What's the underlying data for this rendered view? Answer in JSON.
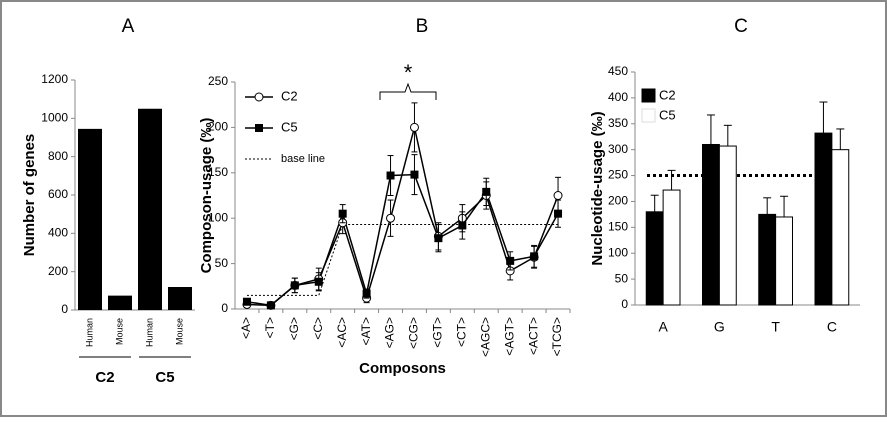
{
  "chart_data": [
    {
      "type": "bar",
      "title": "A",
      "y_label": "Number of genes",
      "categories": [
        "Human",
        "Mouse",
        "Human",
        "Mouse"
      ],
      "groups": [
        "C2",
        "C5"
      ],
      "values": [
        945,
        75,
        1050,
        120
      ],
      "color": "#000000",
      "ylim": [
        0,
        1200
      ],
      "yticks": [
        0,
        200,
        400,
        600,
        800,
        1000,
        1200
      ]
    },
    {
      "type": "line",
      "title": "B",
      "x_label": "Composons",
      "y_label": "Composon-usage (‰)",
      "annotation": "*",
      "categories": [
        "<A>",
        "<T>",
        "<G>",
        "<C>",
        "<AC>",
        "<AT>",
        "<AG>",
        "<CG>",
        "<GT>",
        "<CT>",
        "<AGC>",
        "<AGT>",
        "<ACT>",
        "<TCG>"
      ],
      "series": [
        {
          "name": "C2",
          "color": "#000000",
          "marker": "open-circle",
          "values": [
            5,
            4,
            26,
            33,
            95,
            12,
            100,
            200,
            80,
            100,
            125,
            42,
            57,
            125
          ],
          "errors": [
            3,
            2,
            8,
            12,
            12,
            5,
            20,
            27,
            15,
            15,
            15,
            10,
            12,
            20
          ]
        },
        {
          "name": "C5",
          "color": "#000000",
          "marker": "square",
          "values": [
            8,
            4,
            26,
            30,
            105,
            17,
            147,
            148,
            78,
            92,
            129,
            53,
            58,
            105
          ],
          "errors": [
            3,
            2,
            8,
            10,
            10,
            5,
            22,
            22,
            15,
            15,
            15,
            10,
            12,
            15
          ]
        },
        {
          "name": "base line",
          "color": "#000000",
          "style": "dotted",
          "values": [
            15,
            15,
            15,
            15,
            93,
            93,
            93,
            93,
            93,
            93,
            93,
            93,
            93,
            93
          ]
        }
      ],
      "ylim": [
        0,
        250
      ],
      "yticks": [
        0,
        50,
        100,
        150,
        200,
        250
      ]
    },
    {
      "type": "bar",
      "title": "C",
      "y_label": "Nucleotide-usage (‰)",
      "categories": [
        "A",
        "G",
        "T",
        "C"
      ],
      "series": [
        {
          "name": "C2",
          "color": "#000000",
          "values": [
            180,
            310,
            175,
            332
          ],
          "errors": [
            32,
            57,
            32,
            60
          ]
        },
        {
          "name": "C5",
          "color": "#ffffff",
          "values": [
            222,
            307,
            170,
            300
          ],
          "errors": [
            38,
            40,
            40,
            40
          ]
        }
      ],
      "reference_line": 250,
      "ylim": [
        0,
        450
      ],
      "yticks": [
        0,
        50,
        100,
        150,
        200,
        250,
        300,
        350,
        400,
        450
      ]
    }
  ]
}
